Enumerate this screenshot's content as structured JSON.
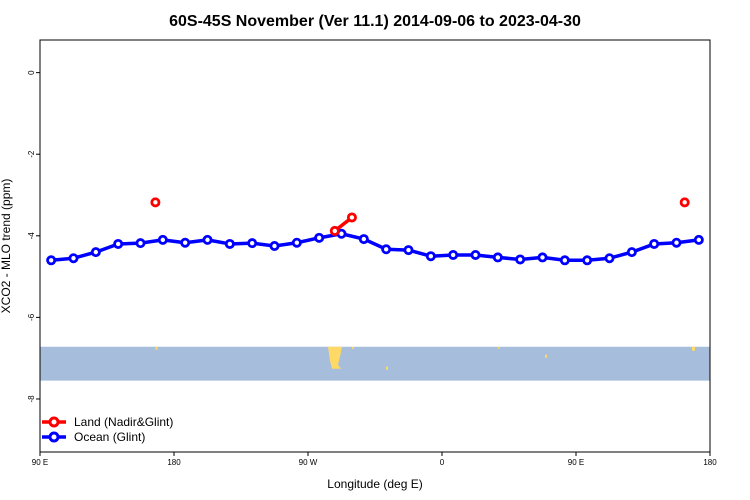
{
  "chart_data": {
    "type": "line",
    "title": "60S-45S November (Ver 11.1)   2014-09-06 to 2023-04-30",
    "xlabel": "Longitude (deg E)",
    "ylabel": "XCO2 - MLO trend (ppm)",
    "x_ticks": [
      {
        "value": 90,
        "label": "90 E"
      },
      {
        "value": 180,
        "label": "180"
      },
      {
        "value": 270,
        "label": "90 W"
      },
      {
        "value": 360,
        "label": "0"
      },
      {
        "value": 450,
        "label": "90 E"
      },
      {
        "value": 540,
        "label": "180"
      }
    ],
    "y_ticks": [
      {
        "value": 0,
        "label": "0"
      },
      {
        "value": -2,
        "label": "-2"
      },
      {
        "value": -4,
        "label": "-4"
      },
      {
        "value": -6,
        "label": "-6"
      },
      {
        "value": -8,
        "label": "-8"
      }
    ],
    "xlim": [
      90,
      540
    ],
    "ylim": [
      -9.3,
      0.8
    ],
    "grid": false,
    "legend_position": "bottom-left",
    "series": [
      {
        "name": "Land (Nadir&Glint)",
        "color": "#ff0000",
        "segments": [
          [
            [
              167.5,
              -3.18
            ]
          ],
          [
            [
              288,
              -3.88
            ],
            [
              299.5,
              -3.55
            ]
          ],
          [
            [
              523,
              -3.18
            ]
          ]
        ]
      },
      {
        "name": "Ocean (Glint)",
        "color": "#0000ff",
        "segments": [
          [
            [
              97.5,
              -4.6
            ],
            [
              112.5,
              -4.55
            ],
            [
              127.5,
              -4.4
            ],
            [
              142.5,
              -4.2
            ],
            [
              157.5,
              -4.18
            ],
            [
              172.5,
              -4.1
            ],
            [
              187.5,
              -4.17
            ],
            [
              202.5,
              -4.1
            ],
            [
              217.5,
              -4.2
            ],
            [
              232.5,
              -4.18
            ],
            [
              247.5,
              -4.25
            ],
            [
              262.5,
              -4.17
            ],
            [
              277.5,
              -4.05
            ],
            [
              292.5,
              -3.95
            ],
            [
              307.5,
              -4.08
            ],
            [
              322.5,
              -4.33
            ],
            [
              337.5,
              -4.35
            ],
            [
              352.5,
              -4.5
            ],
            [
              367.5,
              -4.47
            ],
            [
              382.5,
              -4.47
            ],
            [
              397.5,
              -4.53
            ],
            [
              412.5,
              -4.58
            ],
            [
              427.5,
              -4.53
            ],
            [
              442.5,
              -4.6
            ],
            [
              457.5,
              -4.6
            ],
            [
              472.5,
              -4.55
            ],
            [
              487.5,
              -4.4
            ],
            [
              502.5,
              -4.2
            ],
            [
              517.5,
              -4.17
            ],
            [
              532.5,
              -4.1
            ]
          ]
        ]
      }
    ],
    "map_strip": {
      "ocean_color": "#a6bddb",
      "land_color": "#ffd966",
      "y_top": -6.72,
      "y_bottom": -7.55
    }
  }
}
